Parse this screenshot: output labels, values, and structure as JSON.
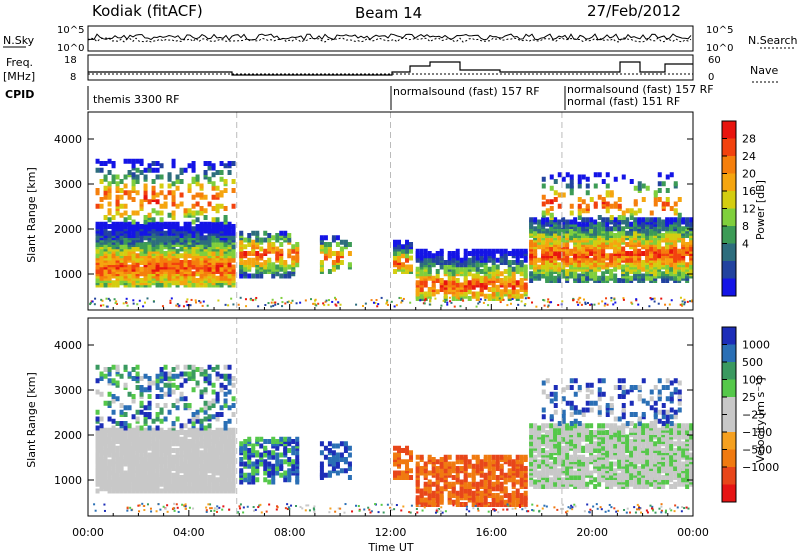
{
  "header": {
    "station": "Kodiak (fitACF)",
    "beam": "Beam 14",
    "date": "27/Feb/2012"
  },
  "strip_labels": {
    "nsky": "N.Sky",
    "nsearch": "N.Search",
    "freq_line1": "Freq.",
    "freq_line2": "[MHz]",
    "nave": "Nave",
    "cpid": "CPID",
    "nsky_ticks": [
      "10^5",
      "10^0"
    ],
    "nsearch_ticks": [
      "10^5",
      "10^0"
    ],
    "freq_ticks": [
      "18",
      "8"
    ],
    "nave_ticks": [
      "60",
      "0"
    ]
  },
  "cpid_labels": [
    {
      "text": "themis 3300 RF"
    },
    {
      "text": "normalsound (fast) 157 RF"
    },
    {
      "text": "normalsound (fast) 157 RF"
    },
    {
      "text": "normal (fast) 151 RF"
    }
  ],
  "chart_data": [
    {
      "type": "heatmap",
      "name": "power",
      "ylabel": "Slant Range [km]",
      "yticks": [
        "4000",
        "3000",
        "2000",
        "1000"
      ],
      "ylim": [
        200,
        4600
      ],
      "xlim_hours": [
        0,
        24
      ],
      "colorbar": {
        "label": "Power [dB]",
        "ticks": [
          "28",
          "24",
          "20",
          "16",
          "12",
          "8",
          "4"
        ],
        "colors": [
          "#e8140e",
          "#f2420e",
          "#f57f0c",
          "#f5a50f",
          "#d4cd10",
          "#7fcf3c",
          "#3c9b56",
          "#2d6d7d",
          "#22439f",
          "#1414e6"
        ]
      }
    },
    {
      "type": "heatmap",
      "name": "velocity",
      "ylabel": "Slant Range [km]",
      "yticks": [
        "4000",
        "3000",
        "2000",
        "1000"
      ],
      "ylim": [
        200,
        4600
      ],
      "xlim_hours": [
        0,
        24
      ],
      "xlabel": "Time UT",
      "xticks": [
        "00:00",
        "04:00",
        "08:00",
        "12:00",
        "16:00",
        "20:00",
        "00:00"
      ],
      "colorbar": {
        "label": "Velocity [m s⁻¹]",
        "ticks": [
          "1000",
          "500",
          "100",
          "25",
          "−25",
          "−100",
          "−500",
          "−1000"
        ],
        "colors": [
          "#1c2db8",
          "#2a6fb5",
          "#3a9960",
          "#55c84a",
          "#c8c8c8",
          "#c8c8c8",
          "#f5a020",
          "#f07a10",
          "#e8461a",
          "#e61414"
        ]
      }
    }
  ]
}
